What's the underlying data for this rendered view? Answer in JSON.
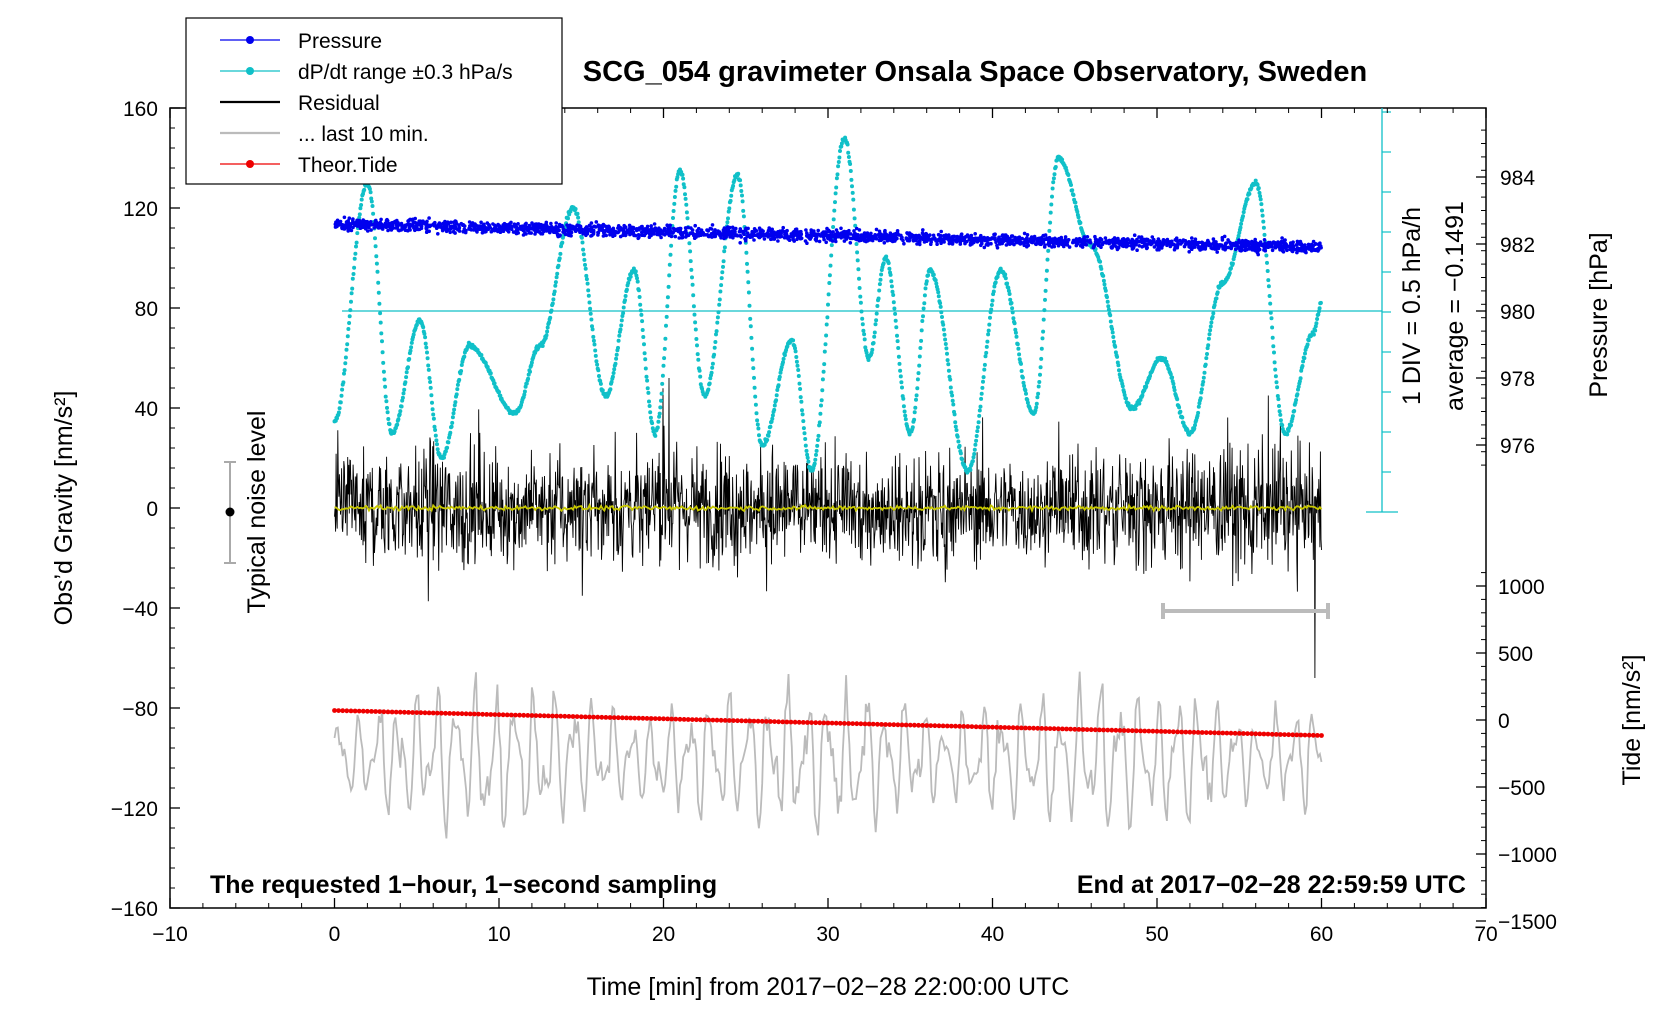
{
  "chart_data": {
    "type": "scatter",
    "title": "SCG_054 gravimeter Onsala Space Observatory, Sweden",
    "xlabel": "Time [min] from 2017−02−28 22:00:00 UTC",
    "xlim": [
      -10,
      70
    ],
    "xticks": [
      "−10",
      "0",
      "10",
      "20",
      "30",
      "40",
      "50",
      "60",
      "70"
    ],
    "ylabel_left": "Obs’d Gravity [nm/s²]",
    "ylim_left": [
      -160,
      160
    ],
    "yticks_left": [
      "160",
      "120",
      "80",
      "40",
      "0",
      "−40",
      "−80",
      "−120",
      "−160"
    ],
    "ylabel_pressure": "Pressure [hPa]",
    "yticks_pressure": [
      "984",
      "982",
      "980",
      "978",
      "976"
    ],
    "ylabel_tide": "Tide [nm/s²]",
    "yticks_tide": [
      "1000",
      "500",
      "0",
      "−500",
      "−1000",
      "−1500"
    ],
    "rate_scale_label": "1 DIV = 0.5 hPa/h",
    "rate_average_label": "average = −0.1491",
    "noise_label": "Typical noise level",
    "footer_left": "The requested 1−hour, 1−second sampling",
    "footer_right": "End at 2017−02−28 22:59:59 UTC",
    "legend": [
      {
        "label": "Pressure",
        "color": "#0000ee",
        "marker": "dot"
      },
      {
        "label": "dP/dt range ±0.3 hPa/s",
        "color": "#10c0c8",
        "marker": "dot"
      },
      {
        "label": "Residual",
        "color": "#000000",
        "marker": "line"
      },
      {
        "label": "... last 10 min.",
        "color": "#bbbbbb",
        "marker": "line"
      },
      {
        "label": "Theor.Tide",
        "color": "#ee0000",
        "marker": "dot"
      }
    ],
    "series": [
      {
        "name": "Pressure",
        "axis": "pressure",
        "unit": "hPa",
        "start": 982.6,
        "end": 981.9,
        "scatter": 0.3
      },
      {
        "name": "dP/dt",
        "axis": "left",
        "peaks_x": [
          0,
          2,
          3.5,
          5.2,
          6.5,
          8.2,
          11,
          12.5,
          14.5,
          16.5,
          18.2,
          19.5,
          21,
          22.5,
          24.5,
          26,
          27.8,
          29,
          31,
          32.5,
          33.5,
          35,
          36.2,
          38.5,
          40.5,
          42.5,
          44,
          46,
          48.5,
          50.3,
          52,
          54,
          56,
          57.8,
          59.5,
          60
        ],
        "peaks_y": [
          35,
          130,
          30,
          75,
          20,
          65,
          38,
          65,
          120,
          45,
          95,
          30,
          135,
          45,
          133,
          25,
          67,
          15,
          148,
          60,
          100,
          30,
          95,
          15,
          95,
          38,
          140,
          105,
          40,
          60,
          30,
          90,
          130,
          30,
          70,
          82
        ]
      },
      {
        "name": "Residual",
        "axis": "left",
        "mean": 0,
        "amplitude": 40
      },
      {
        "name": "last 10 min.",
        "axis": "left",
        "mean": -100,
        "amplitude": 25
      },
      {
        "name": "Theor.Tide",
        "axis": "left",
        "x": [
          0,
          60
        ],
        "y": [
          -81,
          -91
        ]
      }
    ]
  },
  "colors": {
    "pressure": "#0000ee",
    "rate": "#10c0c8",
    "residual": "#000000",
    "residual_mean": "#c8c800",
    "last10": "#bbbbbb",
    "tide": "#ee0000"
  }
}
